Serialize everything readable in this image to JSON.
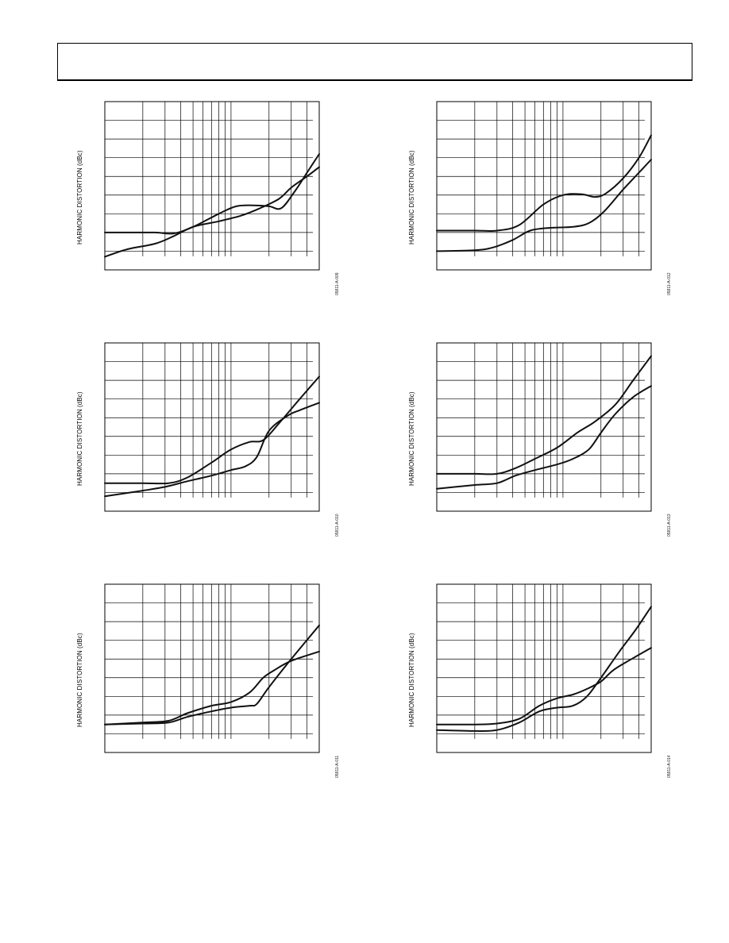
{
  "header": {
    "title": ""
  },
  "chart_data": [
    {
      "type": "line",
      "ylabel": "HARMONIC DISTORTION (dBc)",
      "figure_id": "05811-A-009",
      "x_scale": "log",
      "grid": true,
      "series": [
        {
          "values": [
            [
              0.1,
              -80
            ],
            [
              0.15,
              -80
            ],
            [
              0.25,
              -80
            ],
            [
              0.35,
              -80.5
            ],
            [
              0.5,
              -77
            ],
            [
              0.8,
              -70
            ],
            [
              1.1,
              -66
            ],
            [
              1.5,
              -65.5
            ],
            [
              2.0,
              -66
            ],
            [
              2.5,
              -67
            ],
            [
              3.2,
              -58
            ],
            [
              4.0,
              -48
            ],
            [
              5.0,
              -38
            ]
          ]
        },
        {
          "values": [
            [
              0.1,
              -93
            ],
            [
              0.15,
              -89
            ],
            [
              0.25,
              -86
            ],
            [
              0.35,
              -82
            ],
            [
              0.5,
              -77
            ],
            [
              0.8,
              -74
            ],
            [
              1.2,
              -71
            ],
            [
              1.7,
              -67
            ],
            [
              2.4,
              -62
            ],
            [
              3.0,
              -56
            ],
            [
              4.0,
              -50
            ],
            [
              5.0,
              -45
            ]
          ]
        }
      ]
    },
    {
      "type": "line",
      "ylabel": "HARMONIC DISTORTION (dBc)",
      "figure_id": "05811-A-012",
      "x_scale": "log",
      "grid": true,
      "series": [
        {
          "values": [
            [
              0.1,
              -79
            ],
            [
              0.2,
              -79
            ],
            [
              0.3,
              -79
            ],
            [
              0.45,
              -76
            ],
            [
              0.7,
              -65
            ],
            [
              1.0,
              -60
            ],
            [
              1.4,
              -59.5
            ],
            [
              1.8,
              -61
            ],
            [
              2.2,
              -59
            ],
            [
              3.0,
              -51
            ],
            [
              4.0,
              -40
            ],
            [
              5.0,
              -28
            ]
          ]
        },
        {
          "values": [
            [
              0.1,
              -90
            ],
            [
              0.2,
              -89.5
            ],
            [
              0.28,
              -88
            ],
            [
              0.4,
              -84
            ],
            [
              0.55,
              -79
            ],
            [
              0.8,
              -77.5
            ],
            [
              1.2,
              -77
            ],
            [
              1.6,
              -75
            ],
            [
              2.1,
              -69
            ],
            [
              3.0,
              -57
            ],
            [
              4.0,
              -48
            ],
            [
              5.0,
              -41
            ]
          ]
        }
      ]
    },
    {
      "type": "line",
      "ylabel": "HARMONIC DISTORTION (dBc)",
      "figure_id": "05811-A-010",
      "x_scale": "log",
      "grid": true,
      "series": [
        {
          "values": [
            [
              0.1,
              -85
            ],
            [
              0.2,
              -85
            ],
            [
              0.32,
              -85
            ],
            [
              0.45,
              -82
            ],
            [
              0.7,
              -74
            ],
            [
              1.0,
              -67
            ],
            [
              1.4,
              -63
            ],
            [
              1.8,
              -62
            ],
            [
              2.4,
              -53
            ],
            [
              3.5,
              -40
            ],
            [
              5.0,
              -28
            ]
          ]
        },
        {
          "values": [
            [
              0.1,
              -92
            ],
            [
              0.2,
              -89
            ],
            [
              0.3,
              -87
            ],
            [
              0.45,
              -84
            ],
            [
              0.7,
              -81
            ],
            [
              1.0,
              -78
            ],
            [
              1.3,
              -76
            ],
            [
              1.6,
              -71
            ],
            [
              2.0,
              -57
            ],
            [
              2.8,
              -49
            ],
            [
              3.5,
              -46
            ],
            [
              5.0,
              -42
            ]
          ]
        }
      ]
    },
    {
      "type": "line",
      "ylabel": "HARMONIC DISTORTION (dBc)",
      "figure_id": "05811-A-013",
      "x_scale": "log",
      "grid": true,
      "series": [
        {
          "values": [
            [
              0.1,
              -80
            ],
            [
              0.2,
              -80
            ],
            [
              0.3,
              -80
            ],
            [
              0.42,
              -77
            ],
            [
              0.6,
              -72
            ],
            [
              0.9,
              -66
            ],
            [
              1.3,
              -58
            ],
            [
              1.8,
              -52
            ],
            [
              2.6,
              -43
            ],
            [
              3.6,
              -30
            ],
            [
              5.0,
              -17
            ]
          ]
        },
        {
          "values": [
            [
              0.1,
              -88
            ],
            [
              0.2,
              -86
            ],
            [
              0.3,
              -85
            ],
            [
              0.42,
              -81
            ],
            [
              0.6,
              -78
            ],
            [
              0.9,
              -75
            ],
            [
              1.2,
              -72
            ],
            [
              1.6,
              -67
            ],
            [
              2.0,
              -58
            ],
            [
              2.6,
              -48
            ],
            [
              3.6,
              -39
            ],
            [
              5.0,
              -33
            ]
          ]
        }
      ]
    },
    {
      "type": "line",
      "ylabel": "HARMONIC DISTORTION (dBc)",
      "figure_id": "05811-A-011",
      "x_scale": "log",
      "grid": true,
      "series": [
        {
          "values": [
            [
              0.1,
              -85
            ],
            [
              0.2,
              -84
            ],
            [
              0.32,
              -83
            ],
            [
              0.45,
              -79
            ],
            [
              0.7,
              -75
            ],
            [
              1.0,
              -73
            ],
            [
              1.4,
              -68
            ],
            [
              1.8,
              -60
            ],
            [
              2.2,
              -56
            ],
            [
              3.0,
              -51
            ],
            [
              5.0,
              -46
            ]
          ]
        },
        {
          "values": [
            [
              0.1,
              -85
            ],
            [
              0.2,
              -84.5
            ],
            [
              0.32,
              -84
            ],
            [
              0.45,
              -81
            ],
            [
              0.7,
              -78
            ],
            [
              1.0,
              -76
            ],
            [
              1.4,
              -75
            ],
            [
              1.6,
              -74
            ],
            [
              2.0,
              -65
            ],
            [
              3.0,
              -50
            ],
            [
              5.0,
              -32
            ]
          ]
        }
      ]
    },
    {
      "type": "line",
      "ylabel": "HARMONIC DISTORTION (dBc)",
      "figure_id": "05811-A-014",
      "x_scale": "log",
      "grid": true,
      "series": [
        {
          "values": [
            [
              0.1,
              -85
            ],
            [
              0.2,
              -85
            ],
            [
              0.3,
              -84.5
            ],
            [
              0.45,
              -82
            ],
            [
              0.65,
              -75
            ],
            [
              0.9,
              -71
            ],
            [
              1.2,
              -69
            ],
            [
              1.55,
              -66
            ],
            [
              2.0,
              -62
            ],
            [
              2.5,
              -56
            ],
            [
              3.5,
              -50
            ],
            [
              5.0,
              -44
            ]
          ]
        },
        {
          "values": [
            [
              0.1,
              -88
            ],
            [
              0.2,
              -88.5
            ],
            [
              0.3,
              -88
            ],
            [
              0.45,
              -84
            ],
            [
              0.65,
              -78
            ],
            [
              0.9,
              -76
            ],
            [
              1.2,
              -75
            ],
            [
              1.55,
              -70
            ],
            [
              2.0,
              -60
            ],
            [
              2.8,
              -46
            ],
            [
              3.8,
              -34
            ],
            [
              5.0,
              -22
            ]
          ]
        }
      ]
    }
  ]
}
